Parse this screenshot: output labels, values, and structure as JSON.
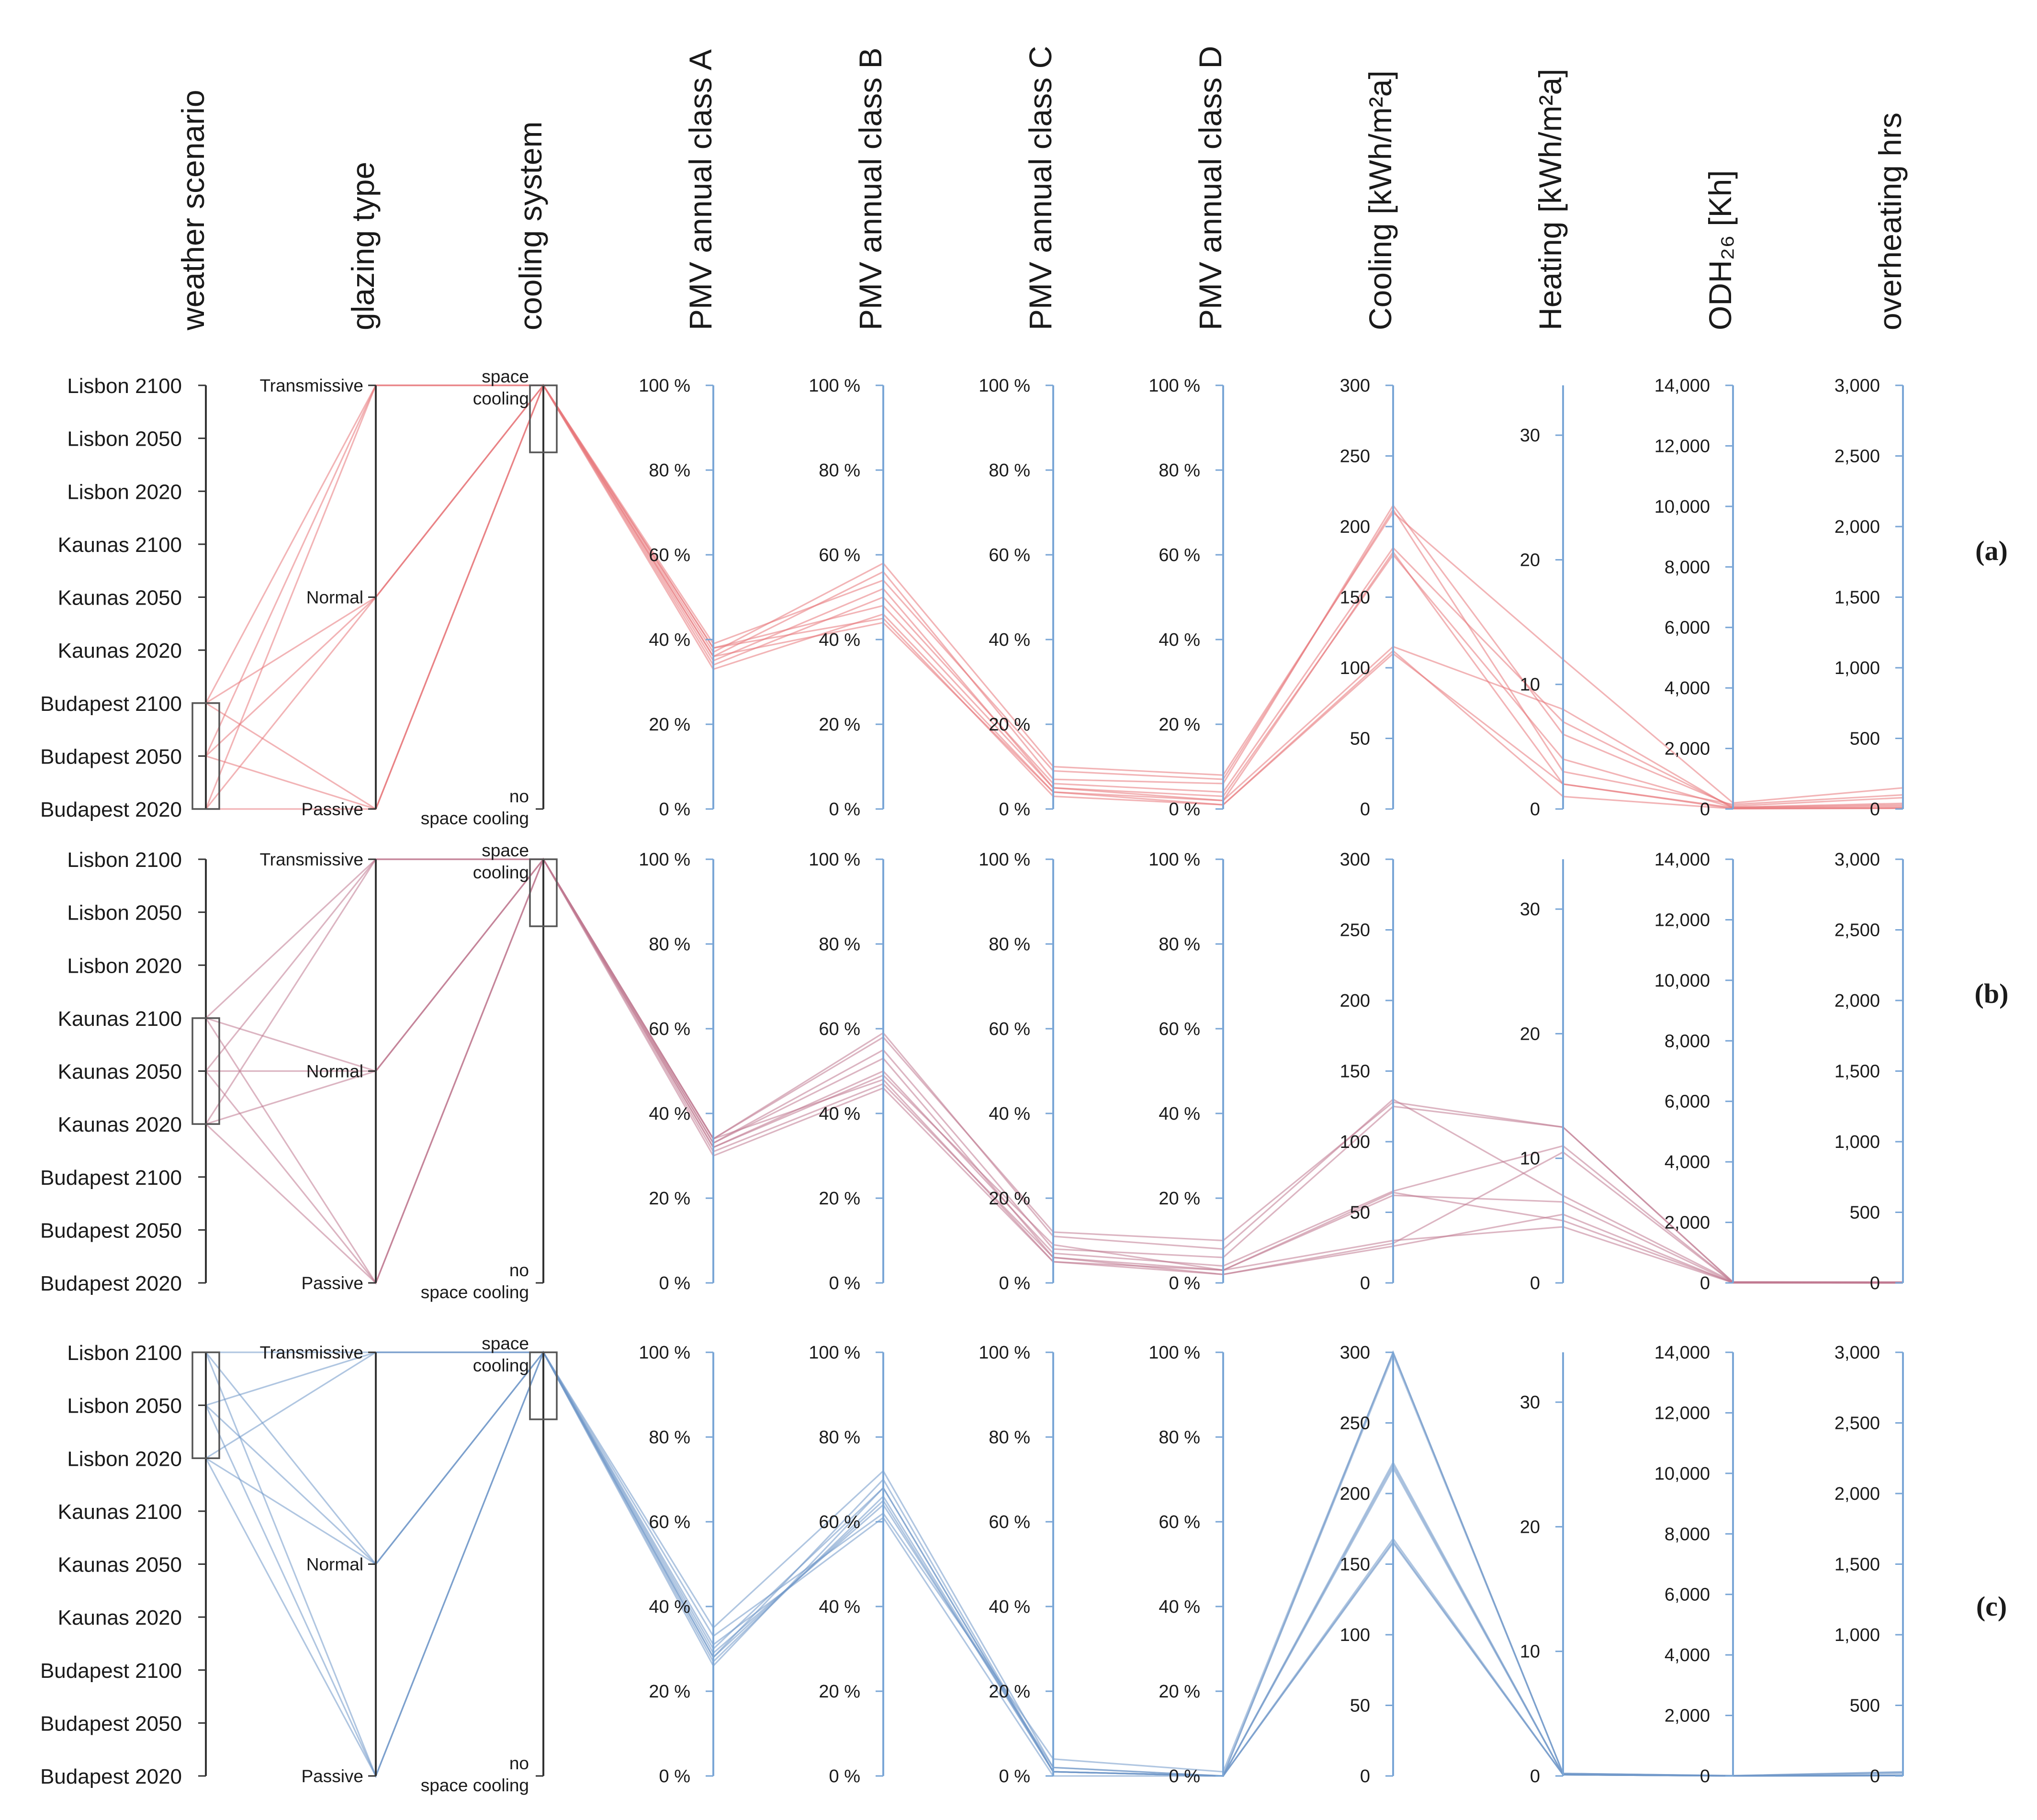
{
  "chart_data": {
    "type": "parallel-coordinates",
    "axes": [
      {
        "key": "weather",
        "title": "weather scenario",
        "kind": "categorical",
        "categories": [
          "Lisbon 2100",
          "Lisbon 2050",
          "Lisbon 2020",
          "Kaunas 2100",
          "Kaunas 2050",
          "Kaunas 2020",
          "Budapest  2100",
          "Budapest  2050",
          "Budapest 2020"
        ]
      },
      {
        "key": "glazing",
        "title": "glazing type",
        "kind": "categorical",
        "categories": [
          "Transmissive",
          "Normal",
          "Passive"
        ]
      },
      {
        "key": "cooling",
        "title": "cooling system",
        "kind": "categorical",
        "categories": [
          [
            "space",
            "cooling"
          ],
          [
            "no",
            "space cooling"
          ]
        ]
      },
      {
        "key": "pmvA",
        "title": "PMV annual class A",
        "kind": "numeric",
        "range": [
          0,
          100
        ],
        "ticks": [
          0,
          20,
          40,
          60,
          80,
          100
        ],
        "tick_labels": [
          "0 %",
          "20 %",
          "40 %",
          "60 %",
          "80 %",
          "100 %"
        ]
      },
      {
        "key": "pmvB",
        "title": "PMV annual class B",
        "kind": "numeric",
        "range": [
          0,
          100
        ],
        "ticks": [
          0,
          20,
          40,
          60,
          80,
          100
        ],
        "tick_labels": [
          "0 %",
          "20 %",
          "40 %",
          "60 %",
          "80 %",
          "100 %"
        ]
      },
      {
        "key": "pmvC",
        "title": "PMV annual class C",
        "kind": "numeric",
        "range": [
          0,
          100
        ],
        "ticks": [
          0,
          20,
          40,
          60,
          80,
          100
        ],
        "tick_labels": [
          "0 %",
          "20 %",
          "40 %",
          "60 %",
          "80 %",
          "100 %"
        ]
      },
      {
        "key": "pmvD",
        "title": "PMV annual class D",
        "kind": "numeric",
        "range": [
          0,
          100
        ],
        "ticks": [
          0,
          20,
          40,
          60,
          80,
          100
        ],
        "tick_labels": [
          "0 %",
          "20 %",
          "40 %",
          "60 %",
          "80 %",
          "100 %"
        ]
      },
      {
        "key": "cool",
        "title": "Cooling [kWh/m²a]",
        "kind": "numeric",
        "range": [
          0,
          300
        ],
        "ticks": [
          0,
          50,
          100,
          150,
          200,
          250,
          300
        ],
        "tick_labels": [
          "0",
          "50",
          "100",
          "150",
          "200",
          "250",
          "300"
        ]
      },
      {
        "key": "heat",
        "title": "Heating [kWh/m²a]",
        "kind": "numeric",
        "range": [
          0,
          34
        ],
        "ticks": [
          0,
          10,
          20,
          30
        ],
        "tick_labels": [
          "0",
          "10",
          "20",
          "30"
        ]
      },
      {
        "key": "odh",
        "title": "ODH₂₆ [Kh]",
        "kind": "numeric",
        "range": [
          0,
          14000
        ],
        "ticks": [
          0,
          2000,
          4000,
          6000,
          8000,
          10000,
          12000,
          14000
        ],
        "tick_labels": [
          "0",
          "2,000",
          "4,000",
          "6,000",
          "8,000",
          "10,000",
          "12,000",
          "14,000"
        ]
      },
      {
        "key": "ovh",
        "title": "overheating hrs",
        "kind": "numeric",
        "range": [
          0,
          3000
        ],
        "ticks": [
          0,
          500,
          1000,
          1500,
          2000,
          2500,
          3000
        ],
        "tick_labels": [
          "0",
          "500",
          "1,000",
          "1,500",
          "2,000",
          "2,500",
          "3,000"
        ]
      }
    ],
    "panels": [
      {
        "label": "(a)",
        "filtered_location": "Budapest",
        "line_color": "#e8767a",
        "brushes": [
          {
            "axis": "weather",
            "from": 6,
            "to": 8
          },
          {
            "axis": "cooling",
            "from": 0,
            "to": 0
          }
        ],
        "lines": [
          {
            "weather": 6,
            "glazing": 0,
            "cooling": 0,
            "pmvA": 37,
            "pmvB": 58,
            "pmvC": 10,
            "pmvD": 8,
            "cool": 210,
            "heat": 12,
            "odh": 200,
            "ovh": 150
          },
          {
            "weather": 6,
            "glazing": 1,
            "cooling": 0,
            "pmvA": 36,
            "pmvB": 56,
            "pmvC": 7,
            "pmvD": 6,
            "cool": 215,
            "heat": 6,
            "odh": 100,
            "ovh": 80
          },
          {
            "weather": 6,
            "glazing": 2,
            "cooling": 0,
            "pmvA": 39,
            "pmvB": 54,
            "pmvC": 9,
            "pmvD": 7,
            "cool": 212,
            "heat": 3,
            "odh": 150,
            "ovh": 100
          },
          {
            "weather": 7,
            "glazing": 0,
            "cooling": 0,
            "pmvA": 34,
            "pmvB": 50,
            "pmvC": 6,
            "pmvD": 4,
            "cool": 185,
            "heat": 7,
            "odh": 60,
            "ovh": 40
          },
          {
            "weather": 7,
            "glazing": 1,
            "cooling": 0,
            "pmvA": 35,
            "pmvB": 52,
            "pmvC": 5,
            "pmvD": 3,
            "cool": 180,
            "heat": 4,
            "odh": 50,
            "ovh": 30
          },
          {
            "weather": 7,
            "glazing": 2,
            "cooling": 0,
            "pmvA": 38,
            "pmvB": 48,
            "pmvC": 5,
            "pmvD": 2,
            "cool": 182,
            "heat": 2,
            "odh": 40,
            "ovh": 20
          },
          {
            "weather": 8,
            "glazing": 0,
            "cooling": 0,
            "pmvA": 33,
            "pmvB": 46,
            "pmvC": 4,
            "pmvD": 2,
            "cool": 115,
            "heat": 8,
            "odh": 20,
            "ovh": 10
          },
          {
            "weather": 8,
            "glazing": 1,
            "cooling": 0,
            "pmvA": 36,
            "pmvB": 44,
            "pmvC": 4,
            "pmvD": 1,
            "cool": 112,
            "heat": 1,
            "odh": 10,
            "ovh": 5
          },
          {
            "weather": 8,
            "glazing": 2,
            "cooling": 0,
            "pmvA": 38,
            "pmvB": 45,
            "pmvC": 3,
            "pmvD": 1,
            "cool": 110,
            "heat": 2,
            "odh": 15,
            "ovh": 5
          }
        ]
      },
      {
        "label": "(b)",
        "filtered_location": "Kaunas",
        "line_color": "#c07890",
        "brushes": [
          {
            "axis": "weather",
            "from": 3,
            "to": 5
          },
          {
            "axis": "cooling",
            "from": 0,
            "to": 0
          }
        ],
        "lines": [
          {
            "weather": 3,
            "glazing": 0,
            "cooling": 0,
            "pmvA": 34,
            "pmvB": 58,
            "pmvC": 12,
            "pmvD": 10,
            "cool": 128,
            "heat": 12.5,
            "odh": 30,
            "ovh": 5
          },
          {
            "weather": 3,
            "glazing": 1,
            "cooling": 0,
            "pmvA": 33,
            "pmvB": 55,
            "pmvC": 8,
            "pmvD": 6,
            "cool": 125,
            "heat": 12.5,
            "odh": 25,
            "ovh": 5
          },
          {
            "weather": 3,
            "glazing": 2,
            "cooling": 0,
            "pmvA": 34,
            "pmvB": 59,
            "pmvC": 11,
            "pmvD": 8,
            "cool": 130,
            "heat": 7,
            "odh": 35,
            "ovh": 5
          },
          {
            "weather": 4,
            "glazing": 0,
            "cooling": 0,
            "pmvA": 32,
            "pmvB": 50,
            "pmvC": 7,
            "pmvD": 4,
            "cool": 65,
            "heat": 11,
            "odh": 10,
            "ovh": 2
          },
          {
            "weather": 4,
            "glazing": 1,
            "cooling": 0,
            "pmvA": 33,
            "pmvB": 53,
            "pmvC": 6,
            "pmvD": 3,
            "cool": 62,
            "heat": 6.5,
            "odh": 8,
            "ovh": 2
          },
          {
            "weather": 4,
            "glazing": 2,
            "cooling": 0,
            "pmvA": 34,
            "pmvB": 48,
            "pmvC": 5,
            "pmvD": 3,
            "cool": 64,
            "heat": 5,
            "odh": 12,
            "ovh": 2
          },
          {
            "weather": 5,
            "glazing": 0,
            "cooling": 0,
            "pmvA": 31,
            "pmvB": 47,
            "pmvC": 6,
            "pmvD": 2,
            "cool": 28,
            "heat": 10.5,
            "odh": 3,
            "ovh": 0
          },
          {
            "weather": 5,
            "glazing": 1,
            "cooling": 0,
            "pmvA": 30,
            "pmvB": 46,
            "pmvC": 5,
            "pmvD": 2,
            "cool": 26,
            "heat": 5.5,
            "odh": 2,
            "ovh": 0
          },
          {
            "weather": 5,
            "glazing": 2,
            "cooling": 0,
            "pmvA": 32,
            "pmvB": 49,
            "pmvC": 9,
            "pmvD": 3,
            "cool": 30,
            "heat": 4.5,
            "odh": 4,
            "ovh": 0
          }
        ]
      },
      {
        "label": "(c)",
        "filtered_location": "Lisbon",
        "line_color": "#6f98c8",
        "brushes": [
          {
            "axis": "weather",
            "from": 0,
            "to": 2
          },
          {
            "axis": "cooling",
            "from": 0,
            "to": 0
          }
        ],
        "lines": [
          {
            "weather": 0,
            "glazing": 0,
            "cooling": 0,
            "pmvA": 35,
            "pmvB": 72,
            "pmvC": 2,
            "pmvD": 0,
            "cool": 300,
            "heat": 0.2,
            "odh": 10,
            "ovh": 25
          },
          {
            "weather": 0,
            "glazing": 1,
            "cooling": 0,
            "pmvA": 30,
            "pmvB": 68,
            "pmvC": 1,
            "pmvD": 0,
            "cool": 298,
            "heat": 0.2,
            "odh": 5,
            "ovh": 20
          },
          {
            "weather": 0,
            "glazing": 2,
            "cooling": 0,
            "pmvA": 33,
            "pmvB": 62,
            "pmvC": 4,
            "pmvD": 1,
            "cool": 300,
            "heat": 0.2,
            "odh": 8,
            "ovh": 30
          },
          {
            "weather": 1,
            "glazing": 0,
            "cooling": 0,
            "pmvA": 28,
            "pmvB": 70,
            "pmvC": 1,
            "pmvD": 0,
            "cool": 222,
            "heat": 0.1,
            "odh": 3,
            "ovh": 5
          },
          {
            "weather": 1,
            "glazing": 1,
            "cooling": 0,
            "pmvA": 27,
            "pmvB": 66,
            "pmvC": 1,
            "pmvD": 0,
            "cool": 220,
            "heat": 0.1,
            "odh": 2,
            "ovh": 5
          },
          {
            "weather": 1,
            "glazing": 2,
            "cooling": 0,
            "pmvA": 29,
            "pmvB": 64,
            "pmvC": 2,
            "pmvD": 0,
            "cool": 218,
            "heat": 0.1,
            "odh": 3,
            "ovh": 5
          },
          {
            "weather": 2,
            "glazing": 0,
            "cooling": 0,
            "pmvA": 26,
            "pmvB": 68,
            "pmvC": 1,
            "pmvD": 0,
            "cool": 168,
            "heat": 0.1,
            "odh": 1,
            "ovh": 2
          },
          {
            "weather": 2,
            "glazing": 1,
            "cooling": 0,
            "pmvA": 31,
            "pmvB": 61,
            "pmvC": 0,
            "pmvD": 0,
            "cool": 165,
            "heat": 0.1,
            "odh": 1,
            "ovh": 2
          },
          {
            "weather": 2,
            "glazing": 2,
            "cooling": 0,
            "pmvA": 28,
            "pmvB": 65,
            "pmvC": 1,
            "pmvD": 0,
            "cool": 166,
            "heat": 0.1,
            "odh": 1,
            "ovh": 2
          }
        ]
      }
    ]
  }
}
